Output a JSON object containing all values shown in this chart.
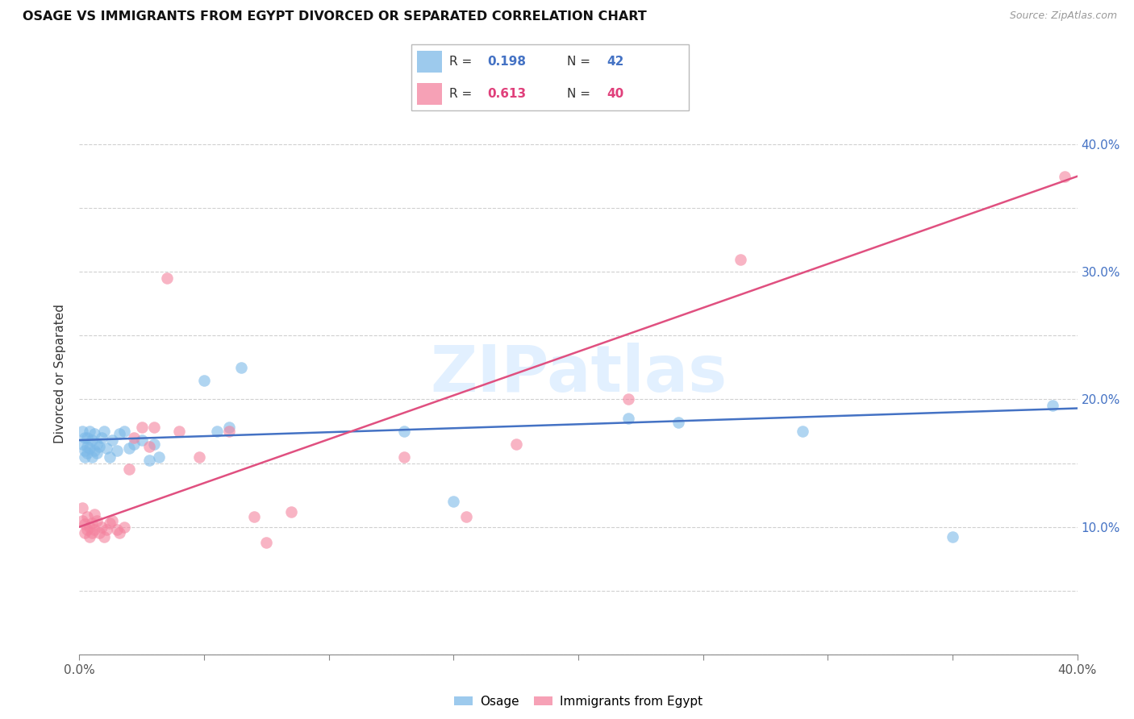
{
  "title": "OSAGE VS IMMIGRANTS FROM EGYPT DIVORCED OR SEPARATED CORRELATION CHART",
  "source": "Source: ZipAtlas.com",
  "ylabel": "Divorced or Separated",
  "xlim": [
    0.0,
    0.4
  ],
  "ylim": [
    0.0,
    0.44
  ],
  "watermark_text": "ZIPatlas",
  "legend_blue_R": "0.198",
  "legend_blue_N": "42",
  "legend_pink_R": "0.613",
  "legend_pink_N": "40",
  "blue_color": "#7cb9e8",
  "pink_color": "#f4829e",
  "blue_line_color": "#4472c4",
  "pink_line_color": "#e05080",
  "osage_x": [
    0.001,
    0.001,
    0.002,
    0.002,
    0.002,
    0.003,
    0.003,
    0.003,
    0.004,
    0.004,
    0.005,
    0.005,
    0.006,
    0.006,
    0.007,
    0.007,
    0.008,
    0.009,
    0.01,
    0.011,
    0.012,
    0.013,
    0.015,
    0.016,
    0.018,
    0.02,
    0.022,
    0.025,
    0.028,
    0.03,
    0.032,
    0.05,
    0.055,
    0.06,
    0.065,
    0.13,
    0.15,
    0.22,
    0.24,
    0.29,
    0.35,
    0.39
  ],
  "osage_y": [
    0.165,
    0.175,
    0.155,
    0.16,
    0.17,
    0.158,
    0.163,
    0.17,
    0.162,
    0.175,
    0.155,
    0.168,
    0.16,
    0.173,
    0.165,
    0.158,
    0.163,
    0.17,
    0.175,
    0.162,
    0.155,
    0.168,
    0.16,
    0.173,
    0.175,
    0.162,
    0.165,
    0.168,
    0.152,
    0.165,
    0.155,
    0.215,
    0.175,
    0.178,
    0.225,
    0.175,
    0.12,
    0.185,
    0.182,
    0.175,
    0.092,
    0.195
  ],
  "egypt_x": [
    0.001,
    0.001,
    0.002,
    0.002,
    0.003,
    0.003,
    0.004,
    0.004,
    0.005,
    0.005,
    0.006,
    0.006,
    0.007,
    0.008,
    0.009,
    0.01,
    0.011,
    0.012,
    0.013,
    0.015,
    0.016,
    0.018,
    0.02,
    0.022,
    0.025,
    0.028,
    0.03,
    0.035,
    0.04,
    0.048,
    0.06,
    0.07,
    0.075,
    0.085,
    0.13,
    0.155,
    0.175,
    0.22,
    0.265,
    0.395
  ],
  "egypt_y": [
    0.115,
    0.105,
    0.095,
    0.102,
    0.098,
    0.108,
    0.1,
    0.092,
    0.103,
    0.095,
    0.11,
    0.098,
    0.105,
    0.095,
    0.1,
    0.092,
    0.098,
    0.103,
    0.105,
    0.098,
    0.095,
    0.1,
    0.145,
    0.17,
    0.178,
    0.163,
    0.178,
    0.295,
    0.175,
    0.155,
    0.175,
    0.108,
    0.088,
    0.112,
    0.155,
    0.108,
    0.165,
    0.2,
    0.31,
    0.375
  ],
  "blue_trendline": [
    0.0,
    0.4,
    0.168,
    0.193
  ],
  "pink_trendline": [
    0.0,
    0.4,
    0.1,
    0.375
  ]
}
